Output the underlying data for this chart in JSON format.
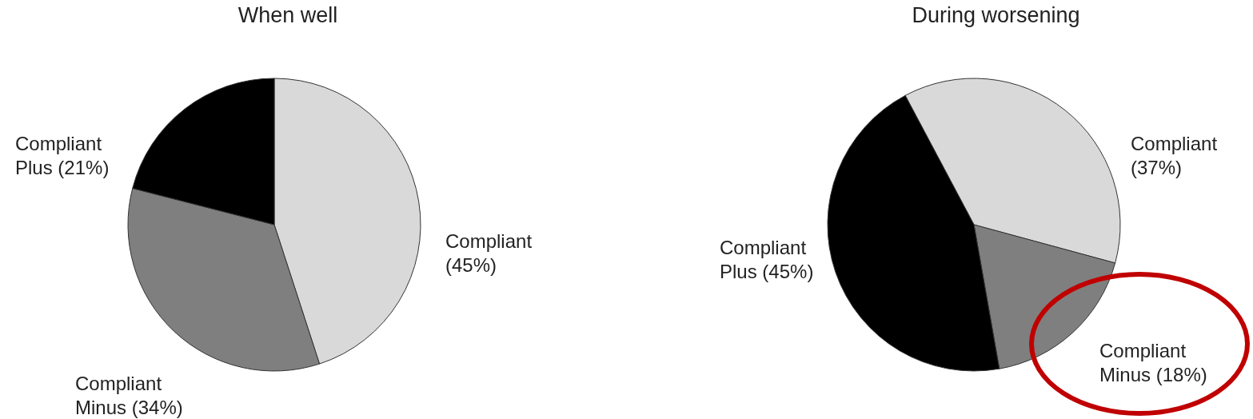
{
  "chart_data": [
    {
      "type": "pie",
      "title": "When well",
      "categories": [
        "Compliant",
        "Compliant Minus",
        "Compliant Plus"
      ],
      "values": [
        45,
        34,
        21
      ],
      "colors": [
        "#d9d9d9",
        "#7f7f7f",
        "#000000"
      ],
      "value_labels": [
        "(45%)",
        "(34%)",
        "(21%)"
      ]
    },
    {
      "type": "pie",
      "title": "During worsening",
      "categories": [
        "Compliant",
        "Compliant Minus",
        "Compliant Plus"
      ],
      "values": [
        37,
        18,
        45
      ],
      "colors": [
        "#d9d9d9",
        "#7f7f7f",
        "#000000"
      ],
      "value_labels": [
        "(37%)",
        "(18%)",
        "(45%)"
      ]
    }
  ]
}
